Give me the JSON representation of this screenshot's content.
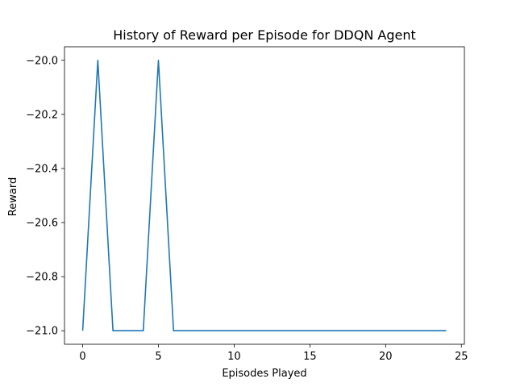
{
  "chart_data": {
    "type": "line",
    "title": "History of Reward per Episode for DDQN Agent",
    "xlabel": "Episodes Played",
    "ylabel": "Reward",
    "xlim": [
      -1.2,
      25.2
    ],
    "ylim": [
      -21.05,
      -19.95
    ],
    "xticks": [
      0,
      5,
      10,
      15,
      20,
      25
    ],
    "xtick_labels": [
      "0",
      "5",
      "10",
      "15",
      "20",
      "25"
    ],
    "yticks": [
      -20.0,
      -20.2,
      -20.4,
      -20.6,
      -20.8,
      -21.0
    ],
    "ytick_labels": [
      "−20.0",
      "−20.2",
      "−20.4",
      "−20.6",
      "−20.8",
      "−21.0"
    ],
    "grid": false,
    "legend": "none",
    "series": [
      {
        "color": "#1f77b4",
        "x": [
          0,
          1,
          2,
          3,
          4,
          5,
          6,
          7,
          8,
          9,
          10,
          11,
          12,
          13,
          14,
          15,
          16,
          17,
          18,
          19,
          20,
          21,
          22,
          23,
          24
        ],
        "y": [
          -21,
          -20,
          -21,
          -21,
          -21,
          -20,
          -21,
          -21,
          -21,
          -21,
          -21,
          -21,
          -21,
          -21,
          -21,
          -21,
          -21,
          -21,
          -21,
          -21,
          -21,
          -21,
          -21,
          -21,
          -21
        ]
      }
    ]
  }
}
